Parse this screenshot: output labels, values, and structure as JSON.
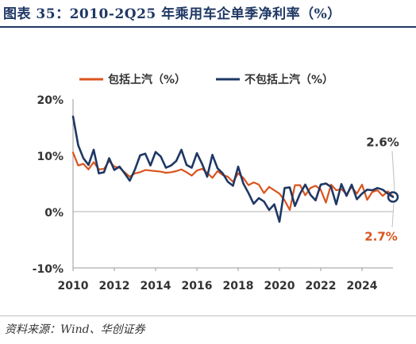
{
  "title": "图表 35：2010-2Q25 年乘用车企单季净利率（%）",
  "source": "资料来源：Wind、华创证券",
  "colors": {
    "series_a": "#d9541e",
    "series_b": "#1f3864",
    "axis": "#999999",
    "grid": "#d9d9d9",
    "text": "#333333"
  },
  "chart_data": {
    "type": "line",
    "title": "图表 35：2010-2Q25 年乘用车企单季净利率（%）",
    "xlabel": "",
    "ylabel": "",
    "x_ticks": [
      "2010",
      "2012",
      "2014",
      "2016",
      "2018",
      "2020",
      "2022",
      "2024"
    ],
    "y_ticks": [
      "20%",
      "10%",
      "0%",
      "-10%"
    ],
    "y_tick_values": [
      20,
      10,
      0,
      -10
    ],
    "xlim": [
      2010.0,
      2025.5
    ],
    "ylim": [
      -10,
      20
    ],
    "grid": false,
    "legend_position": "top",
    "x_start": "2010Q1",
    "x_end": "2025Q2",
    "series": [
      {
        "name": "包括上汽（%）",
        "color": "#d9541e",
        "values": [
          10.5,
          8.2,
          8.5,
          7.5,
          8.8,
          7.5,
          7.6,
          9.0,
          8.0,
          7.8,
          7.0,
          6.2,
          6.8,
          7.0,
          7.4,
          7.3,
          7.2,
          7.1,
          6.9,
          7.0,
          7.2,
          7.5,
          7.0,
          6.4,
          7.3,
          7.6,
          6.9,
          6.0,
          7.2,
          6.5,
          6.2,
          5.3,
          6.8,
          6.0,
          4.7,
          5.2,
          4.8,
          3.3,
          4.4,
          3.8,
          3.2,
          2.0,
          0.3,
          4.7,
          4.7,
          2.9,
          4.2,
          4.6,
          3.9,
          1.6,
          4.8,
          3.8,
          4.0,
          3.1,
          4.4,
          3.2,
          4.8,
          2.1,
          3.5,
          3.8,
          2.8,
          3.6,
          2.7
        ],
        "end_label": "2.7%"
      },
      {
        "name": "不包括上汽（%）",
        "color": "#1f3864",
        "values": [
          16.9,
          11.8,
          9.5,
          8.3,
          11.0,
          6.8,
          7.0,
          9.5,
          7.4,
          8.0,
          6.8,
          5.5,
          7.5,
          10.0,
          10.3,
          8.2,
          10.6,
          9.8,
          7.8,
          8.2,
          9.0,
          11.0,
          8.3,
          7.8,
          10.4,
          8.5,
          6.2,
          10.1,
          7.7,
          6.8,
          5.3,
          4.6,
          8.0,
          5.0,
          3.3,
          1.4,
          2.4,
          1.8,
          0.3,
          1.3,
          -1.8,
          4.2,
          4.3,
          1.0,
          3.2,
          4.8,
          3.0,
          2.0,
          4.8,
          5.0,
          4.4,
          1.3,
          4.9,
          2.8,
          4.8,
          2.2,
          3.2,
          3.9,
          3.8,
          4.2,
          3.9,
          3.2,
          2.6
        ],
        "end_label": "2.6%"
      }
    ]
  }
}
